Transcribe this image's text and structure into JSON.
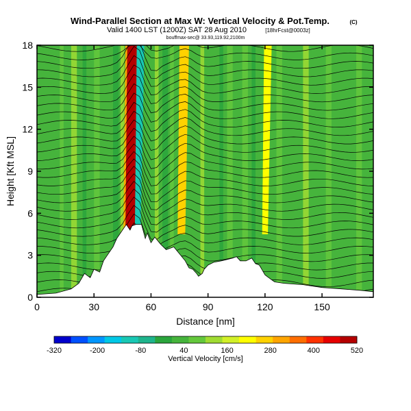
{
  "chart_data": {
    "type": "heatmap",
    "title": "Wind-Parallel Section at Max W: Vertical Velocity & Pot.Temp.",
    "copyright_mark": "(C)",
    "subtitle": "Valid 1400 LST (1200Z) SAT 28 Aug 2010",
    "subtitle_suffix": "[18hrFcst@0003z]",
    "sub_subtitle": "bouffmax-sec@ 33.93,119.92,2100m",
    "xlabel": "Distance [nm]",
    "ylabel": "Height [Kft MSL]",
    "xlim": [
      0,
      177
    ],
    "ylim": [
      0,
      18
    ],
    "x_ticks": [
      0,
      30,
      60,
      90,
      120,
      150
    ],
    "y_ticks": [
      0,
      3,
      6,
      9,
      12,
      15,
      18
    ],
    "colorbar": {
      "label": "Vertical Velocity [cm/s]",
      "tick_labels": [
        "-320",
        "-200",
        "-80",
        "40",
        "160",
        "280",
        "400",
        "520"
      ],
      "min": -320,
      "max": 520,
      "colors": [
        "#0000cc",
        "#0050ff",
        "#0096ff",
        "#00c8e6",
        "#19c8b4",
        "#1eb48c",
        "#2aa53c",
        "#46b43c",
        "#64c83c",
        "#a0dc32",
        "#d2f028",
        "#ffff00",
        "#ffd200",
        "#ffa500",
        "#ff6e00",
        "#ff3200",
        "#e60000",
        "#b40000"
      ]
    },
    "terrain_profile": {
      "distance_nm": [
        0,
        10,
        18,
        22,
        25,
        28,
        30,
        33,
        35,
        37,
        40,
        42,
        45,
        47,
        49,
        50,
        52,
        55,
        57,
        58,
        60,
        62,
        65,
        68,
        72,
        75,
        78,
        80,
        82,
        84,
        85,
        87,
        88,
        90,
        93,
        97,
        100,
        103,
        105,
        107,
        110,
        113,
        115,
        117,
        120,
        122,
        125,
        130,
        140,
        150,
        160,
        170,
        177
      ],
      "height_kft": [
        0.2,
        0.3,
        0.6,
        1.0,
        1.7,
        1.4,
        2.0,
        1.8,
        2.6,
        3.0,
        3.6,
        4.2,
        4.8,
        5.2,
        4.8,
        5.1,
        5.2,
        5.2,
        4.2,
        4.6,
        3.9,
        4.3,
        3.8,
        3.4,
        3.6,
        3.1,
        2.6,
        2.1,
        2.0,
        1.7,
        1.5,
        1.7,
        2.0,
        2.3,
        2.5,
        2.6,
        2.7,
        2.8,
        2.9,
        2.6,
        2.6,
        2.8,
        2.4,
        2.3,
        1.6,
        1.4,
        1.1,
        1.0,
        0.9,
        0.7,
        0.6,
        0.5,
        0.4
      ]
    },
    "updraft_columns": [
      {
        "x_nm": 49,
        "width_nm": 5,
        "value_cm_s": 500
      },
      {
        "x_nm": 53,
        "width_nm": 3,
        "value_cm_s": -120
      },
      {
        "x_nm": 76,
        "width_nm": 4,
        "value_cm_s": 250
      },
      {
        "x_nm": 120,
        "width_nm": 3,
        "value_cm_s": 220
      }
    ]
  }
}
